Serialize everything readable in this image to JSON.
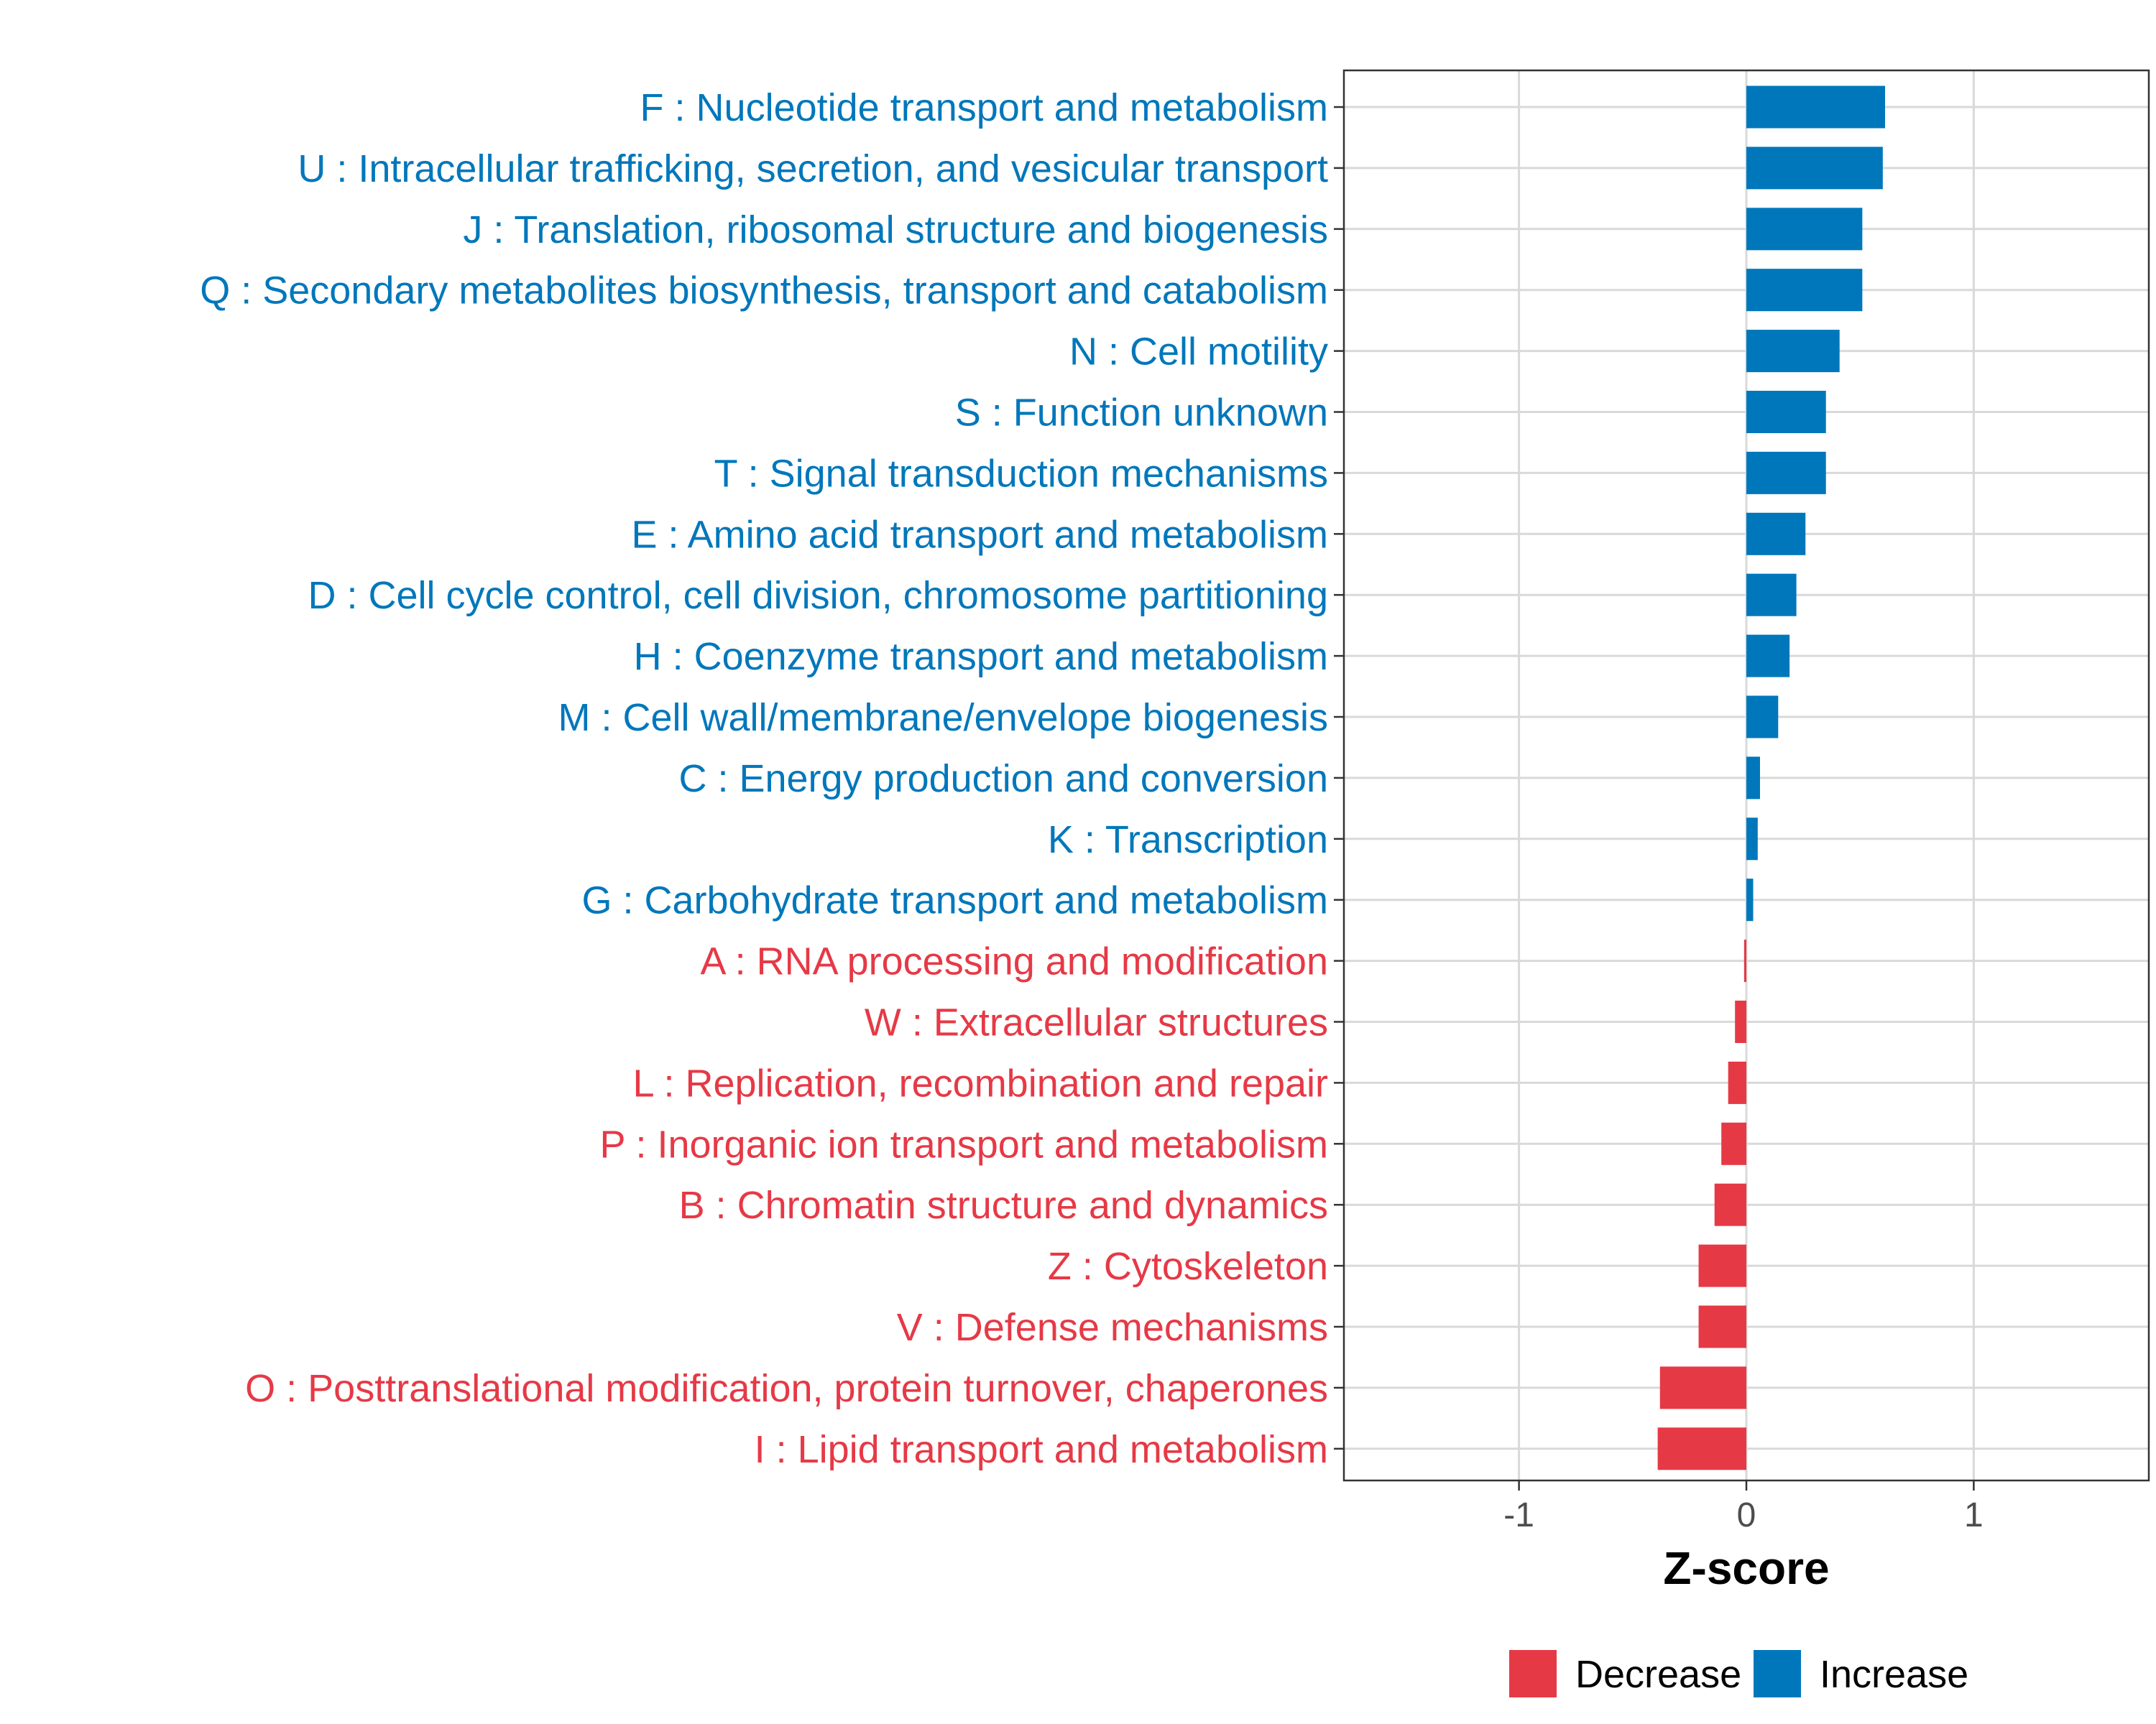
{
  "chart_data": {
    "type": "bar",
    "orientation": "horizontal",
    "xlabel": "Z-score",
    "ylabel": "",
    "xlim": [
      -1.77,
      1.77
    ],
    "xticks": [
      -1,
      0,
      1
    ],
    "xtick_labels": [
      "-1",
      "0",
      "1"
    ],
    "grid": true,
    "colors": {
      "Increase": "#0077BB",
      "Decrease": "#E63946"
    },
    "legend": {
      "position": "bottom",
      "entries": [
        {
          "key": "Decrease",
          "label": "Decrease"
        },
        {
          "key": "Increase",
          "label": "Increase"
        }
      ]
    },
    "categories": [
      {
        "label": "F : Nucleotide transport and metabolism",
        "value": 0.61,
        "direction": "Increase"
      },
      {
        "label": "U : Intracellular trafficking, secretion, and vesicular transport",
        "value": 0.6,
        "direction": "Increase"
      },
      {
        "label": "J : Translation, ribosomal structure and biogenesis",
        "value": 0.51,
        "direction": "Increase"
      },
      {
        "label": "Q : Secondary metabolites biosynthesis, transport and catabolism",
        "value": 0.51,
        "direction": "Increase"
      },
      {
        "label": "N : Cell motility",
        "value": 0.41,
        "direction": "Increase"
      },
      {
        "label": "S : Function unknown",
        "value": 0.35,
        "direction": "Increase"
      },
      {
        "label": "T : Signal transduction mechanisms",
        "value": 0.35,
        "direction": "Increase"
      },
      {
        "label": "E : Amino acid transport and metabolism",
        "value": 0.26,
        "direction": "Increase"
      },
      {
        "label": "D : Cell cycle control, cell division, chromosome partitioning",
        "value": 0.22,
        "direction": "Increase"
      },
      {
        "label": "H : Coenzyme transport and metabolism",
        "value": 0.19,
        "direction": "Increase"
      },
      {
        "label": "M : Cell wall/membrane/envelope biogenesis",
        "value": 0.14,
        "direction": "Increase"
      },
      {
        "label": "C : Energy production and conversion",
        "value": 0.06,
        "direction": "Increase"
      },
      {
        "label": "K : Transcription",
        "value": 0.05,
        "direction": "Increase"
      },
      {
        "label": "G : Carbohydrate transport and metabolism",
        "value": 0.03,
        "direction": "Increase"
      },
      {
        "label": "A : RNA processing and modification",
        "value": -0.01,
        "direction": "Decrease"
      },
      {
        "label": "W : Extracellular structures",
        "value": -0.05,
        "direction": "Decrease"
      },
      {
        "label": "L : Replication, recombination and repair",
        "value": -0.08,
        "direction": "Decrease"
      },
      {
        "label": "P : Inorganic ion transport and metabolism",
        "value": -0.11,
        "direction": "Decrease"
      },
      {
        "label": "B : Chromatin structure and dynamics",
        "value": -0.14,
        "direction": "Decrease"
      },
      {
        "label": "Z : Cytoskeleton",
        "value": -0.21,
        "direction": "Decrease"
      },
      {
        "label": "V : Defense mechanisms",
        "value": -0.21,
        "direction": "Decrease"
      },
      {
        "label": "O : Posttranslational modification, protein turnover, chaperones",
        "value": -0.38,
        "direction": "Decrease"
      },
      {
        "label": "I : Lipid transport and metabolism",
        "value": -0.39,
        "direction": "Decrease"
      }
    ]
  }
}
